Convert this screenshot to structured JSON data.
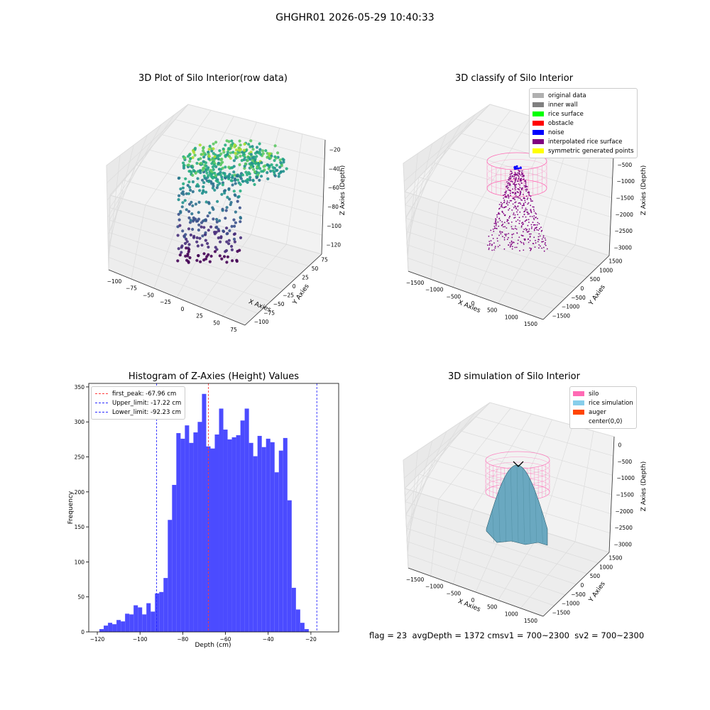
{
  "suptitle": "GHGHR01 2026-05-29 10:40:33",
  "status": "flag = 23  avgDepth = 1372 cmsv1 = 700~2300  sv2 = 700~2300",
  "colors": {
    "hist_bar": "#4b4bff",
    "first_peak_line": "#ff3b3b",
    "limit_line": "#2b2bff",
    "silo_mesh": "#ff69b4",
    "surface": "#6aa8c0",
    "pane": "#f2f2f2"
  },
  "panel1": {
    "title": "3D Plot of Silo Interior(row data)",
    "xlabel": "X Axies",
    "ylabel": "Y Axies",
    "zlabel": "Z Axies (Depth)",
    "xticks": [
      "−100",
      "−75",
      "−50",
      "−25",
      "0",
      "25",
      "50",
      "75"
    ],
    "yticks": [
      "−100",
      "−75",
      "−50",
      "−25",
      "0",
      "25",
      "50",
      "75"
    ],
    "zticks": [
      "−120",
      "−100",
      "−80",
      "−60",
      "−40",
      "−20"
    ],
    "colormap": "viridis"
  },
  "panel2": {
    "title": "3D classify of Silo Interior",
    "xlabel": "X Axies",
    "ylabel": "Y Axies",
    "zlabel": "Z Axies (Depth)",
    "xticks": [
      "−1500",
      "−1000",
      "−500",
      "0",
      "500",
      "1000",
      "1500"
    ],
    "yticks": [
      "−1500",
      "−1000",
      "−500",
      "0",
      "500",
      "1000",
      "1500"
    ],
    "zticks": [
      "−3000",
      "−2500",
      "−2000",
      "−1500",
      "−1000",
      "−500",
      "0"
    ],
    "legend": [
      {
        "label": "original data",
        "color": "#b0b0b0"
      },
      {
        "label": "inner wall",
        "color": "#808080"
      },
      {
        "label": "rice surface",
        "color": "#00ff00"
      },
      {
        "label": "obstacle",
        "color": "#ff0000"
      },
      {
        "label": "noise",
        "color": "#0000ff"
      },
      {
        "label": "interpolated rice surface",
        "color": "#800080"
      },
      {
        "label": "symmetric generated points",
        "color": "#ffff00"
      }
    ]
  },
  "panel4": {
    "title": "3D simulation of Silo Interior",
    "xlabel": "X Axies",
    "ylabel": "Y Axies",
    "zlabel": "Z Axies (Depth)",
    "xticks": [
      "−1500",
      "−1000",
      "−500",
      "0",
      "500",
      "1000",
      "1500"
    ],
    "yticks": [
      "−1500",
      "−1000",
      "−500",
      "0",
      "500",
      "1000",
      "1500"
    ],
    "zticks": [
      "−3000",
      "−2500",
      "−2000",
      "−1500",
      "−1000",
      "−500",
      "0"
    ],
    "legend": [
      {
        "label": "silo",
        "color": "#ff69b4"
      },
      {
        "label": "rice simulation",
        "color": "#87ceeb"
      },
      {
        "label": "auger",
        "color": "#ff4500"
      },
      {
        "label": "center(0,0)",
        "color": ""
      }
    ]
  },
  "chart_data": [
    {
      "type": "bar",
      "title": "Histogram of Z-Axies (Height) Values",
      "xlabel": "Depth (cm)",
      "ylabel": "Frequency",
      "xlim": [
        -124,
        -7
      ],
      "ylim": [
        0,
        355
      ],
      "xticks": [
        -120,
        -100,
        -80,
        -60,
        -40,
        -20
      ],
      "yticks": [
        0,
        50,
        100,
        150,
        200,
        250,
        300,
        350
      ],
      "bin_edges_start": -119.0,
      "bin_width": 2.0,
      "values": [
        4,
        9,
        13,
        11,
        17,
        15,
        26,
        25,
        38,
        35,
        25,
        41,
        29,
        55,
        57,
        77,
        160,
        210,
        284,
        276,
        295,
        270,
        285,
        300,
        340,
        265,
        262,
        282,
        319,
        289,
        275,
        278,
        281,
        302,
        319,
        270,
        251,
        280,
        264,
        276,
        271,
        228,
        259,
        277,
        188,
        63,
        32,
        13,
        4
      ],
      "vlines": [
        {
          "label": "first_peak: -67.96 cm",
          "x": -67.96,
          "color": "#ff3b3b"
        },
        {
          "label": "Upper_limit: -17.22 cm",
          "x": -17.22,
          "color": "#2b2bff"
        },
        {
          "label": "Lower_limit: -92.23 cm",
          "x": -92.23,
          "color": "#2b2bff"
        }
      ]
    }
  ]
}
